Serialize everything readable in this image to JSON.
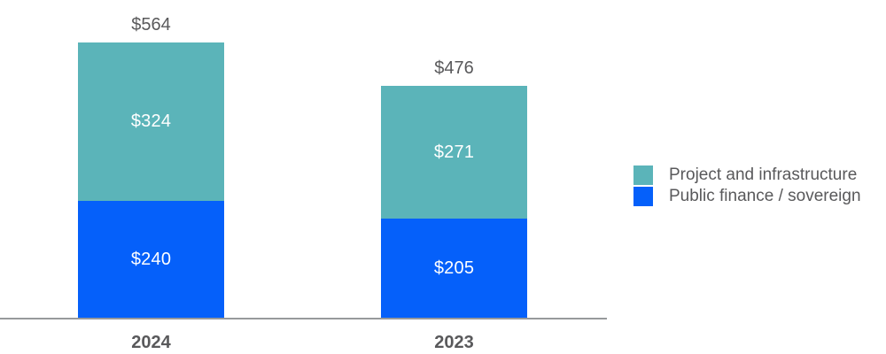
{
  "chart_data": {
    "type": "bar",
    "stacked": true,
    "title": "",
    "xlabel": "",
    "ylabel": "",
    "grid": false,
    "legend_position": "right",
    "value_prefix": "$",
    "categories": [
      "2024",
      "2023"
    ],
    "series": [
      {
        "name": "Public finance / sovereign",
        "color": "#0560FA",
        "values": [
          240,
          205
        ]
      },
      {
        "name": "Project and infrastructure",
        "color": "#5BB4B9",
        "values": [
          324,
          271
        ]
      }
    ],
    "totals": [
      564,
      476
    ],
    "ylim": [
      0,
      650
    ]
  },
  "colors": {
    "axis_line": "#97999B",
    "outside_label_text": "#59595B",
    "inside_label_text": "#FFFFFF"
  }
}
